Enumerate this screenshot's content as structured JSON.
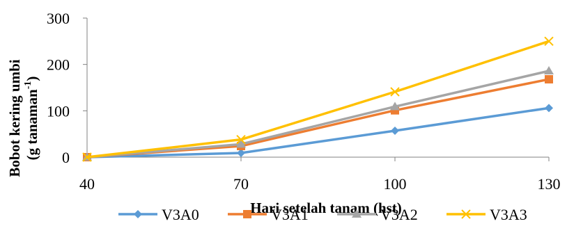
{
  "chart_data": {
    "type": "line",
    "x": [
      40,
      70,
      100,
      130
    ],
    "series": [
      {
        "name": "V3A0",
        "values": [
          0,
          9,
          57,
          106
        ],
        "color": "#5B9BD5",
        "marker": "diamond"
      },
      {
        "name": "V3A1",
        "values": [
          0,
          24,
          101,
          168
        ],
        "color": "#ED7D31",
        "marker": "square"
      },
      {
        "name": "V3A2",
        "values": [
          0,
          28,
          109,
          186
        ],
        "color": "#A5A5A5",
        "marker": "triangle"
      },
      {
        "name": "V3A3",
        "values": [
          0,
          38,
          141,
          250
        ],
        "color": "#FFC000",
        "marker": "x"
      }
    ],
    "xticks": [
      "40",
      "70",
      "100",
      "130"
    ],
    "yticks": [
      "0",
      "100",
      "200",
      "300"
    ],
    "ylim": [
      0,
      300
    ],
    "xlabel": "Hari setelah tanam (hst)",
    "ylabel_line1": "Bobot kering umbi",
    "ylabel_line2_main": "(g tanaman",
    "ylabel_line2_sup": "-1",
    "ylabel_line2_end": ")",
    "grid": false,
    "legend_position": "bottom"
  }
}
